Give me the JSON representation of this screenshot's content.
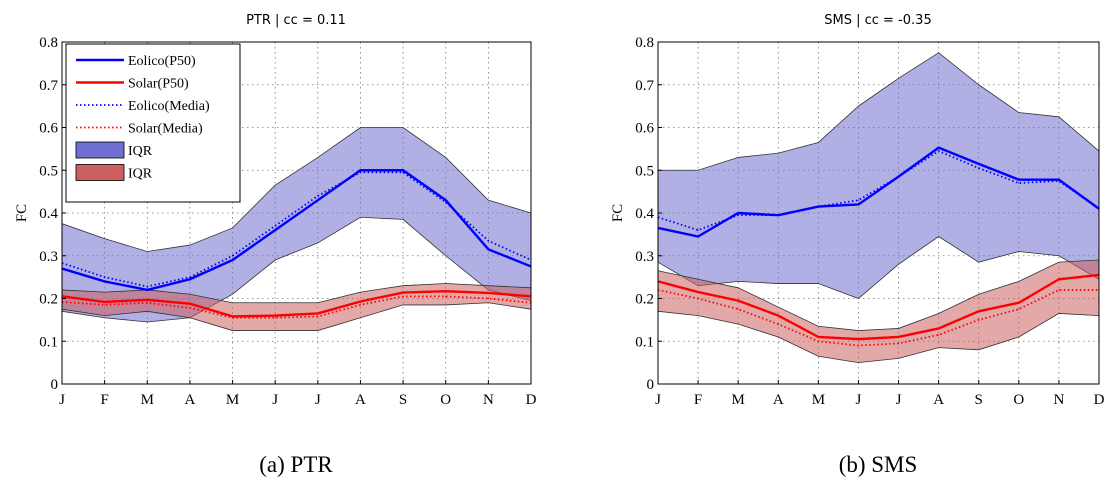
{
  "chart_data": [
    {
      "type": "line",
      "title": "PTR | cc = 0.11",
      "caption": "(a) PTR",
      "ylabel": "FC",
      "xlabel": "",
      "ylim": [
        0,
        0.8
      ],
      "yticks": [
        "0",
        "0.1",
        "0.2",
        "0.3",
        "0.4",
        "0.5",
        "0.6",
        "0.7",
        "0.8"
      ],
      "categories": [
        "J",
        "F",
        "M",
        "A",
        "M",
        "J",
        "J",
        "A",
        "S",
        "O",
        "N",
        "D"
      ],
      "grid": true,
      "legend_position": "top-left",
      "series": [
        {
          "name": "Eolico(P50)",
          "color": "#0000ff",
          "style": "solid",
          "values": [
            0.27,
            0.24,
            0.22,
            0.245,
            0.29,
            0.36,
            0.43,
            0.5,
            0.5,
            0.43,
            0.315,
            0.275
          ]
        },
        {
          "name": "Solar(P50)",
          "color": "#ff0000",
          "style": "solid",
          "values": [
            0.205,
            0.192,
            0.197,
            0.188,
            0.158,
            0.16,
            0.165,
            0.193,
            0.214,
            0.217,
            0.213,
            0.205
          ]
        },
        {
          "name": "Eolico(Media)",
          "color": "#0000ff",
          "style": "dotted",
          "values": [
            0.283,
            0.25,
            0.228,
            0.25,
            0.3,
            0.37,
            0.44,
            0.495,
            0.495,
            0.425,
            0.335,
            0.29
          ]
        },
        {
          "name": "Solar(Media)",
          "color": "#ff0000",
          "style": "dotted",
          "values": [
            0.192,
            0.185,
            0.19,
            0.178,
            0.155,
            0.155,
            0.158,
            0.185,
            0.205,
            0.205,
            0.2,
            0.19
          ]
        }
      ],
      "bands": [
        {
          "name": "IQR",
          "fill": "#6f6fd0",
          "lower": [
            0.17,
            0.155,
            0.145,
            0.155,
            0.21,
            0.29,
            0.33,
            0.39,
            0.385,
            0.3,
            0.22,
            0.195
          ],
          "upper": [
            0.375,
            0.34,
            0.31,
            0.325,
            0.365,
            0.465,
            0.53,
            0.6,
            0.6,
            0.53,
            0.43,
            0.4
          ]
        },
        {
          "name": "IQR",
          "fill": "#cc6060",
          "lower": [
            0.175,
            0.16,
            0.17,
            0.155,
            0.125,
            0.125,
            0.125,
            0.155,
            0.185,
            0.185,
            0.19,
            0.175
          ],
          "upper": [
            0.22,
            0.215,
            0.22,
            0.21,
            0.19,
            0.19,
            0.19,
            0.215,
            0.23,
            0.235,
            0.23,
            0.225
          ]
        }
      ]
    },
    {
      "type": "line",
      "title": "SMS | cc = -0.35",
      "caption": "(b) SMS",
      "ylabel": "FC",
      "xlabel": "",
      "ylim": [
        0,
        0.8
      ],
      "yticks": [
        "0",
        "0.1",
        "0.2",
        "0.3",
        "0.4",
        "0.5",
        "0.6",
        "0.7",
        "0.8"
      ],
      "categories": [
        "J",
        "F",
        "M",
        "A",
        "M",
        "J",
        "J",
        "A",
        "S",
        "O",
        "N",
        "D"
      ],
      "grid": true,
      "series": [
        {
          "name": "Eolico(P50)",
          "color": "#0000ff",
          "style": "solid",
          "values": [
            0.365,
            0.345,
            0.4,
            0.395,
            0.415,
            0.42,
            0.485,
            0.553,
            0.515,
            0.478,
            0.478,
            0.41
          ]
        },
        {
          "name": "Solar(P50)",
          "color": "#ff0000",
          "style": "solid",
          "values": [
            0.24,
            0.215,
            0.195,
            0.16,
            0.11,
            0.105,
            0.11,
            0.13,
            0.17,
            0.19,
            0.245,
            0.255
          ]
        },
        {
          "name": "Eolico(Media)",
          "color": "#0000ff",
          "style": "dotted",
          "values": [
            0.39,
            0.36,
            0.395,
            0.395,
            0.415,
            0.43,
            0.485,
            0.545,
            0.505,
            0.47,
            0.475,
            0.41
          ]
        },
        {
          "name": "Solar(Media)",
          "color": "#ff0000",
          "style": "dotted",
          "values": [
            0.22,
            0.2,
            0.175,
            0.14,
            0.1,
            0.09,
            0.095,
            0.115,
            0.15,
            0.175,
            0.22,
            0.22
          ]
        }
      ],
      "bands": [
        {
          "name": "IQR",
          "fill": "#6f6fd0",
          "lower": [
            0.285,
            0.23,
            0.24,
            0.235,
            0.235,
            0.2,
            0.28,
            0.345,
            0.285,
            0.31,
            0.3,
            0.245
          ],
          "upper": [
            0.5,
            0.5,
            0.53,
            0.54,
            0.565,
            0.65,
            0.715,
            0.775,
            0.7,
            0.635,
            0.625,
            0.545
          ]
        },
        {
          "name": "IQR",
          "fill": "#cc6060",
          "lower": [
            0.17,
            0.16,
            0.14,
            0.11,
            0.065,
            0.05,
            0.06,
            0.085,
            0.08,
            0.11,
            0.165,
            0.16
          ],
          "upper": [
            0.265,
            0.245,
            0.225,
            0.18,
            0.135,
            0.125,
            0.13,
            0.165,
            0.21,
            0.24,
            0.285,
            0.29
          ]
        }
      ]
    }
  ]
}
